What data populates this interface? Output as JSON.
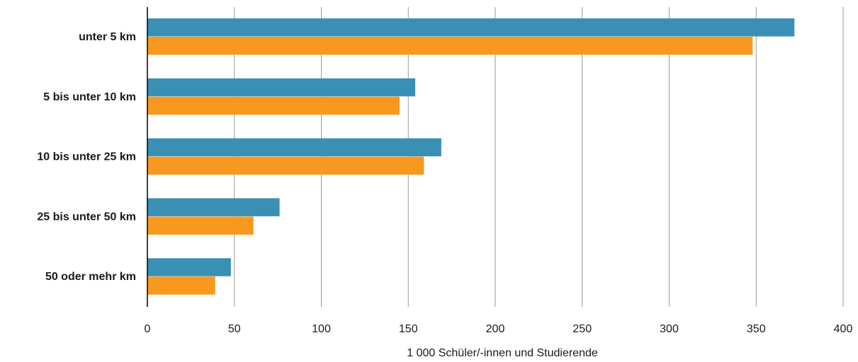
{
  "chart_data": {
    "type": "bar",
    "orientation": "horizontal",
    "categories": [
      "unter 5 km",
      "5 bis unter 10 km",
      "10 bis unter 25 km",
      "25 bis unter 50 km",
      "50 oder mehr km"
    ],
    "series": [
      {
        "color": "#3a8fb5",
        "values": [
          372,
          154,
          169,
          76,
          48
        ]
      },
      {
        "color": "#f7991e",
        "values": [
          348,
          145,
          159,
          61,
          39
        ]
      }
    ],
    "xlabel": "1 000 Schüler/-innen und Studierende",
    "xlim": [
      0,
      400
    ],
    "xticks": [
      "0",
      "50",
      "100",
      "150",
      "200",
      "250",
      "300",
      "350",
      "400"
    ],
    "grid": true,
    "legend": "none"
  }
}
